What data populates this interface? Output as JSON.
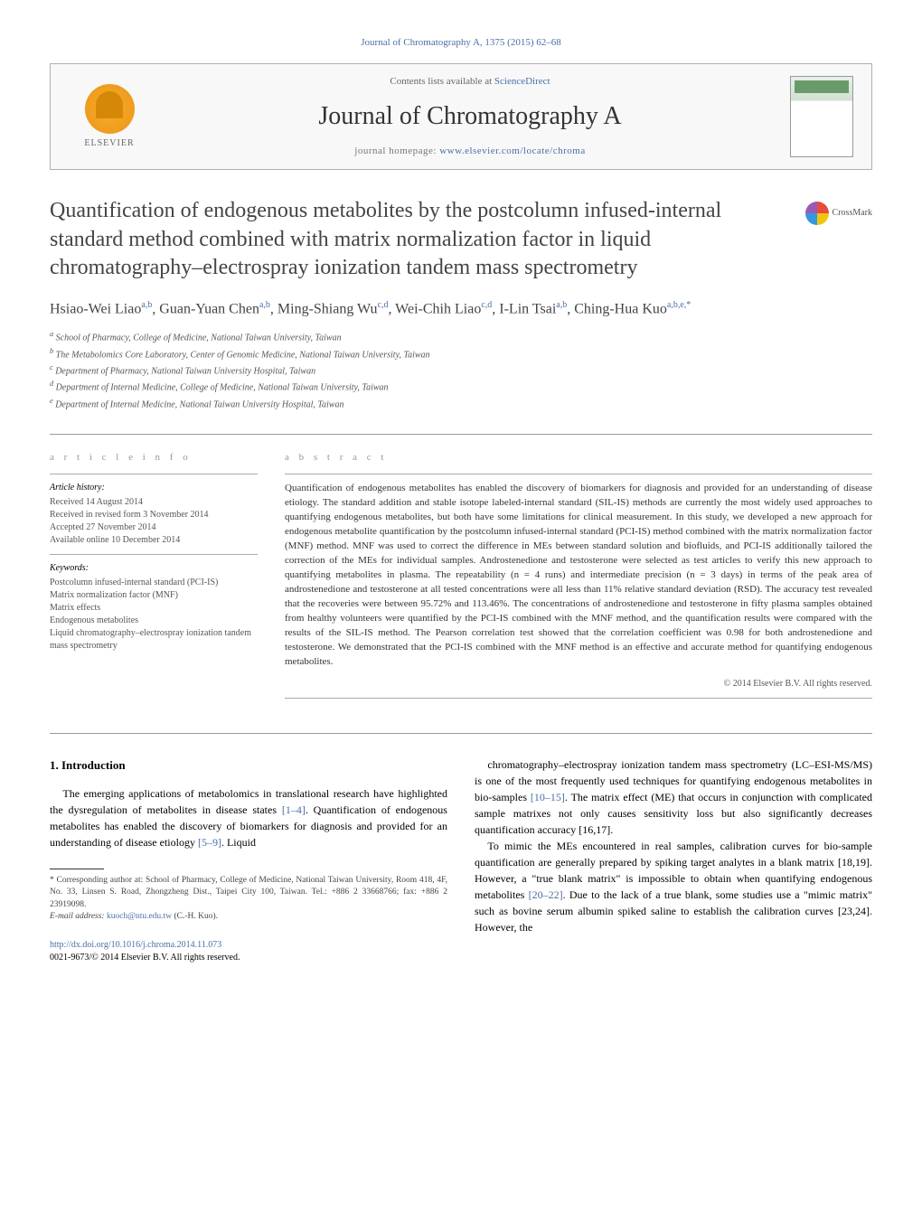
{
  "journal_ref": "Journal of Chromatography A, 1375 (2015) 62–68",
  "header": {
    "publisher": "ELSEVIER",
    "contents_prefix": "Contents lists available at ",
    "contents_link": "ScienceDirect",
    "journal_title": "Journal of Chromatography A",
    "homepage_prefix": "journal homepage: ",
    "homepage_link": "www.elsevier.com/locate/chroma"
  },
  "crossmark": "CrossMark",
  "title": "Quantification of endogenous metabolites by the postcolumn infused-internal standard method combined with matrix normalization factor in liquid chromatography–electrospray ionization tandem mass spectrometry",
  "authors_html": "Hsiao-Wei Liao<sup>a,b</sup>, Guan-Yuan Chen<sup>a,b</sup>, Ming-Shiang Wu<sup>c,d</sup>, Wei-Chih Liao<sup>c,d</sup>, I-Lin Tsai<sup>a,b</sup>, Ching-Hua Kuo<sup>a,b,e,*</sup>",
  "affiliations": [
    "a School of Pharmacy, College of Medicine, National Taiwan University, Taiwan",
    "b The Metabolomics Core Laboratory, Center of Genomic Medicine, National Taiwan University, Taiwan",
    "c Department of Pharmacy, National Taiwan University Hospital, Taiwan",
    "d Department of Internal Medicine, College of Medicine, National Taiwan University, Taiwan",
    "e Department of Internal Medicine, National Taiwan University Hospital, Taiwan"
  ],
  "article_info": {
    "heading": "a r t i c l e   i n f o",
    "history_label": "Article history:",
    "history": [
      "Received 14 August 2014",
      "Received in revised form 3 November 2014",
      "Accepted 27 November 2014",
      "Available online 10 December 2014"
    ],
    "keywords_label": "Keywords:",
    "keywords": [
      "Postcolumn infused-internal standard (PCI-IS)",
      "Matrix normalization factor (MNF)",
      "Matrix effects",
      "Endogenous metabolites",
      "Liquid chromatography–electrospray ionization tandem mass spectrometry"
    ]
  },
  "abstract": {
    "heading": "a b s t r a c t",
    "body": "Quantification of endogenous metabolites has enabled the discovery of biomarkers for diagnosis and provided for an understanding of disease etiology. The standard addition and stable isotope labeled-internal standard (SIL-IS) methods are currently the most widely used approaches to quantifying endogenous metabolites, but both have some limitations for clinical measurement. In this study, we developed a new approach for endogenous metabolite quantification by the postcolumn infused-internal standard (PCI-IS) method combined with the matrix normalization factor (MNF) method. MNF was used to correct the difference in MEs between standard solution and biofluids, and PCI-IS additionally tailored the correction of the MEs for individual samples. Androstenedione and testosterone were selected as test articles to verify this new approach to quantifying metabolites in plasma. The repeatability (n = 4 runs) and intermediate precision (n = 3 days) in terms of the peak area of androstenedione and testosterone at all tested concentrations were all less than 11% relative standard deviation (RSD). The accuracy test revealed that the recoveries were between 95.72% and 113.46%. The concentrations of androstenedione and testosterone in fifty plasma samples obtained from healthy volunteers were quantified by the PCI-IS combined with the MNF method, and the quantification results were compared with the results of the SIL-IS method. The Pearson correlation test showed that the correlation coefficient was 0.98 for both androstenedione and testosterone. We demonstrated that the PCI-IS combined with the MNF method is an effective and accurate method for quantifying endogenous metabolites.",
    "copyright": "© 2014 Elsevier B.V. All rights reserved."
  },
  "body": {
    "section_number": "1.",
    "section_title": "Introduction",
    "col1_p1": "The emerging applications of metabolomics in translational research have highlighted the dysregulation of metabolites in disease states [1–4]. Quantification of endogenous metabolites has enabled the discovery of biomarkers for diagnosis and provided for an understanding of disease etiology [5–9]. Liquid",
    "col2_p1": "chromatography–electrospray ionization tandem mass spectrometry (LC–ESI-MS/MS) is one of the most frequently used techniques for quantifying endogenous metabolites in bio-samples [10–15]. The matrix effect (ME) that occurs in conjunction with complicated sample matrixes not only causes sensitivity loss but also significantly decreases quantification accuracy [16,17].",
    "col2_p2": "To mimic the MEs encountered in real samples, calibration curves for bio-sample quantification are generally prepared by spiking target analytes in a blank matrix [18,19]. However, a \"true blank matrix\" is impossible to obtain when quantifying endogenous metabolites [20–22]. Due to the lack of a true blank, some studies use a \"mimic matrix\" such as bovine serum albumin spiked saline to establish the calibration curves [23,24]. However, the"
  },
  "footnotes": {
    "corresponding": "* Corresponding author at: School of Pharmacy, College of Medicine, National Taiwan University, Room 418, 4F, No. 33, Linsen S. Road, Zhongzheng Dist., Taipei City 100, Taiwan. Tel.: +886 2 33668766; fax: +886 2 23919098.",
    "email_label": "E-mail address: ",
    "email": "kuoch@ntu.edu.tw",
    "email_suffix": " (C.-H. Kuo)."
  },
  "doi": {
    "link": "http://dx.doi.org/10.1016/j.chroma.2014.11.073",
    "issn_line": "0021-9673/© 2014 Elsevier B.V. All rights reserved."
  },
  "colors": {
    "link": "#4a6fa5",
    "text": "#333333",
    "muted": "#666666"
  }
}
